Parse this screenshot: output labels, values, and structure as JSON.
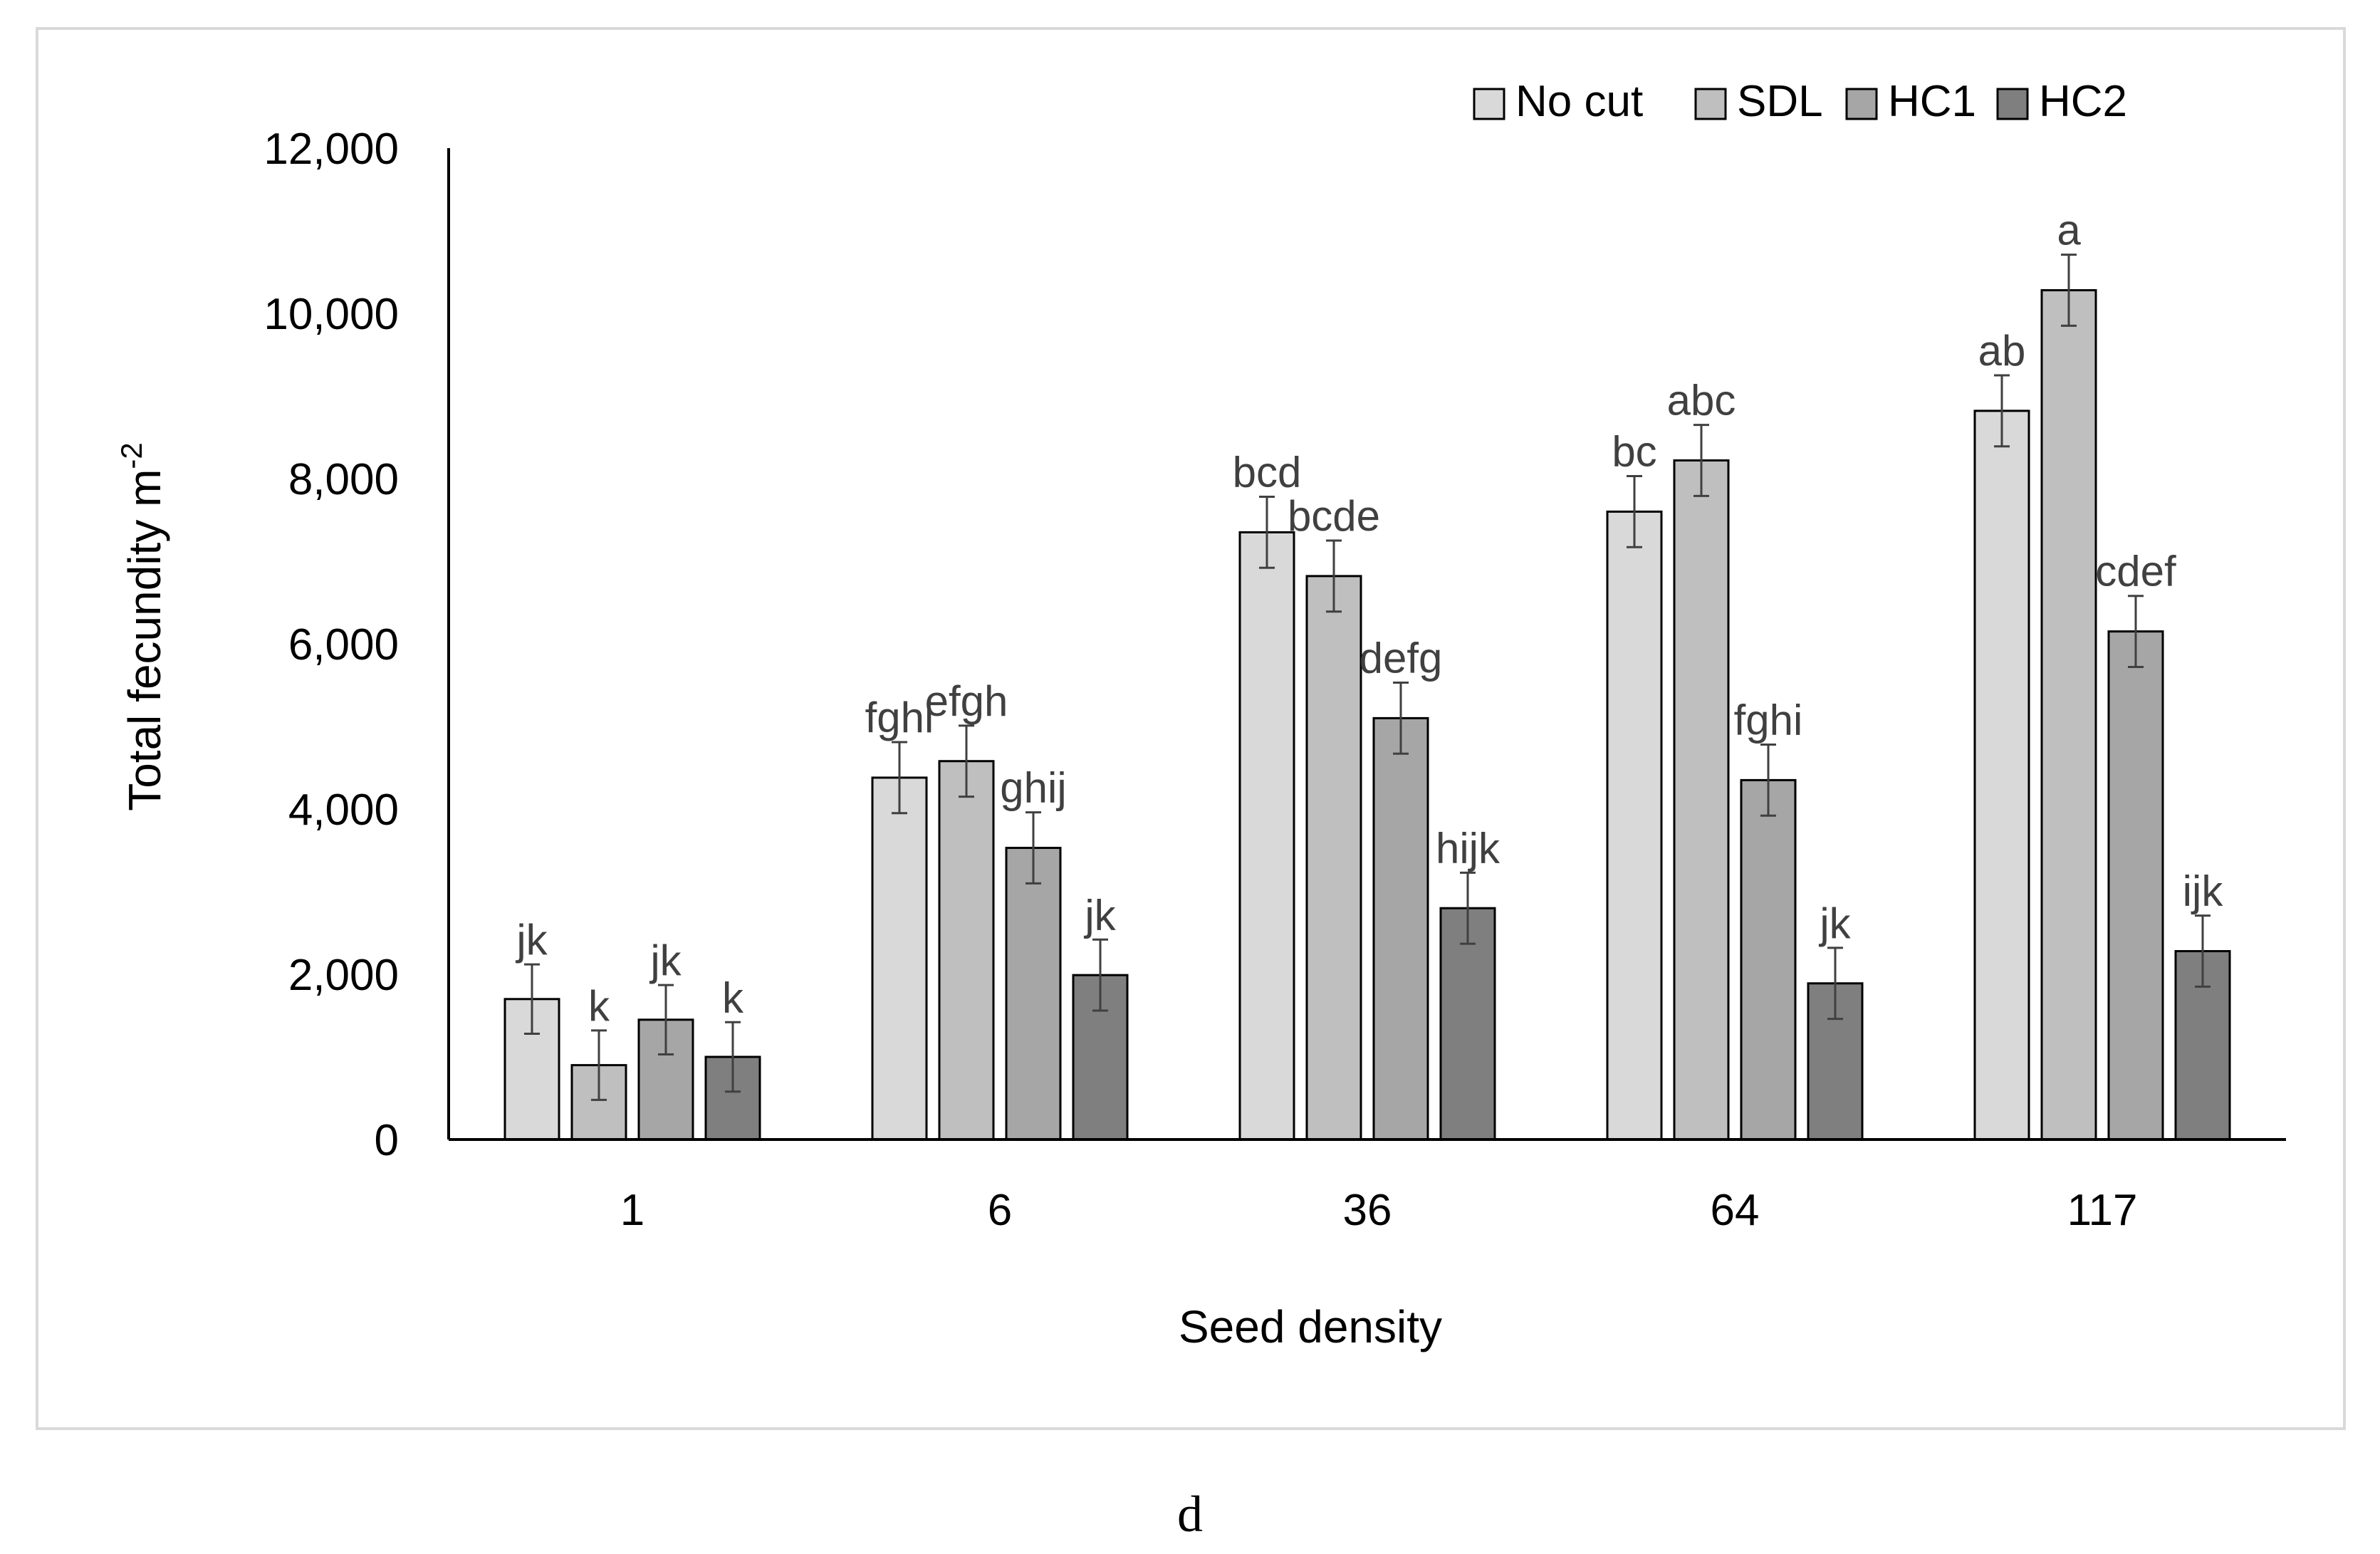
{
  "chart_data": {
    "type": "bar",
    "title": "",
    "xlabel": "Seed density",
    "ylabel": "Total fecundity m",
    "ylabel_superscript": "-2",
    "categories": [
      "1",
      "6",
      "36",
      "64",
      "117"
    ],
    "ylim": [
      0,
      12000
    ],
    "yticks": [
      0,
      2000,
      4000,
      6000,
      8000,
      10000,
      12000
    ],
    "ytick_labels": [
      "0",
      "2,000",
      "4,000",
      "6,000",
      "8,000",
      "10,000",
      "12,000"
    ],
    "grid": false,
    "legend_position": "top-right",
    "series": [
      {
        "name": "No cut",
        "color": "#d9d9d9",
        "values": [
          1700,
          4380,
          7350,
          7600,
          8820
        ],
        "errors": [
          420,
          430,
          430,
          430,
          430
        ],
        "letters": [
          "jk",
          "fghi",
          "bcd",
          "bc",
          "ab"
        ]
      },
      {
        "name": "SDL",
        "color": "#bfbfbf",
        "values": [
          900,
          4580,
          6820,
          8220,
          10280
        ],
        "errors": [
          420,
          430,
          430,
          430,
          430
        ],
        "letters": [
          "k",
          "efgh",
          "bcde",
          "abc",
          "a"
        ]
      },
      {
        "name": "HC1",
        "color": "#a6a6a6",
        "values": [
          1450,
          3530,
          5100,
          4350,
          6150
        ],
        "errors": [
          420,
          430,
          430,
          430,
          430
        ],
        "letters": [
          "jk",
          "ghij",
          "defg",
          "fghi",
          "cdef"
        ]
      },
      {
        "name": "HC2",
        "color": "#7f7f7f",
        "values": [
          1000,
          1990,
          2800,
          1890,
          2280
        ],
        "errors": [
          420,
          430,
          430,
          430,
          430
        ],
        "letters": [
          "k",
          "jk",
          "hijk",
          "jk",
          "ijk"
        ]
      }
    ]
  },
  "panel_label": "d"
}
